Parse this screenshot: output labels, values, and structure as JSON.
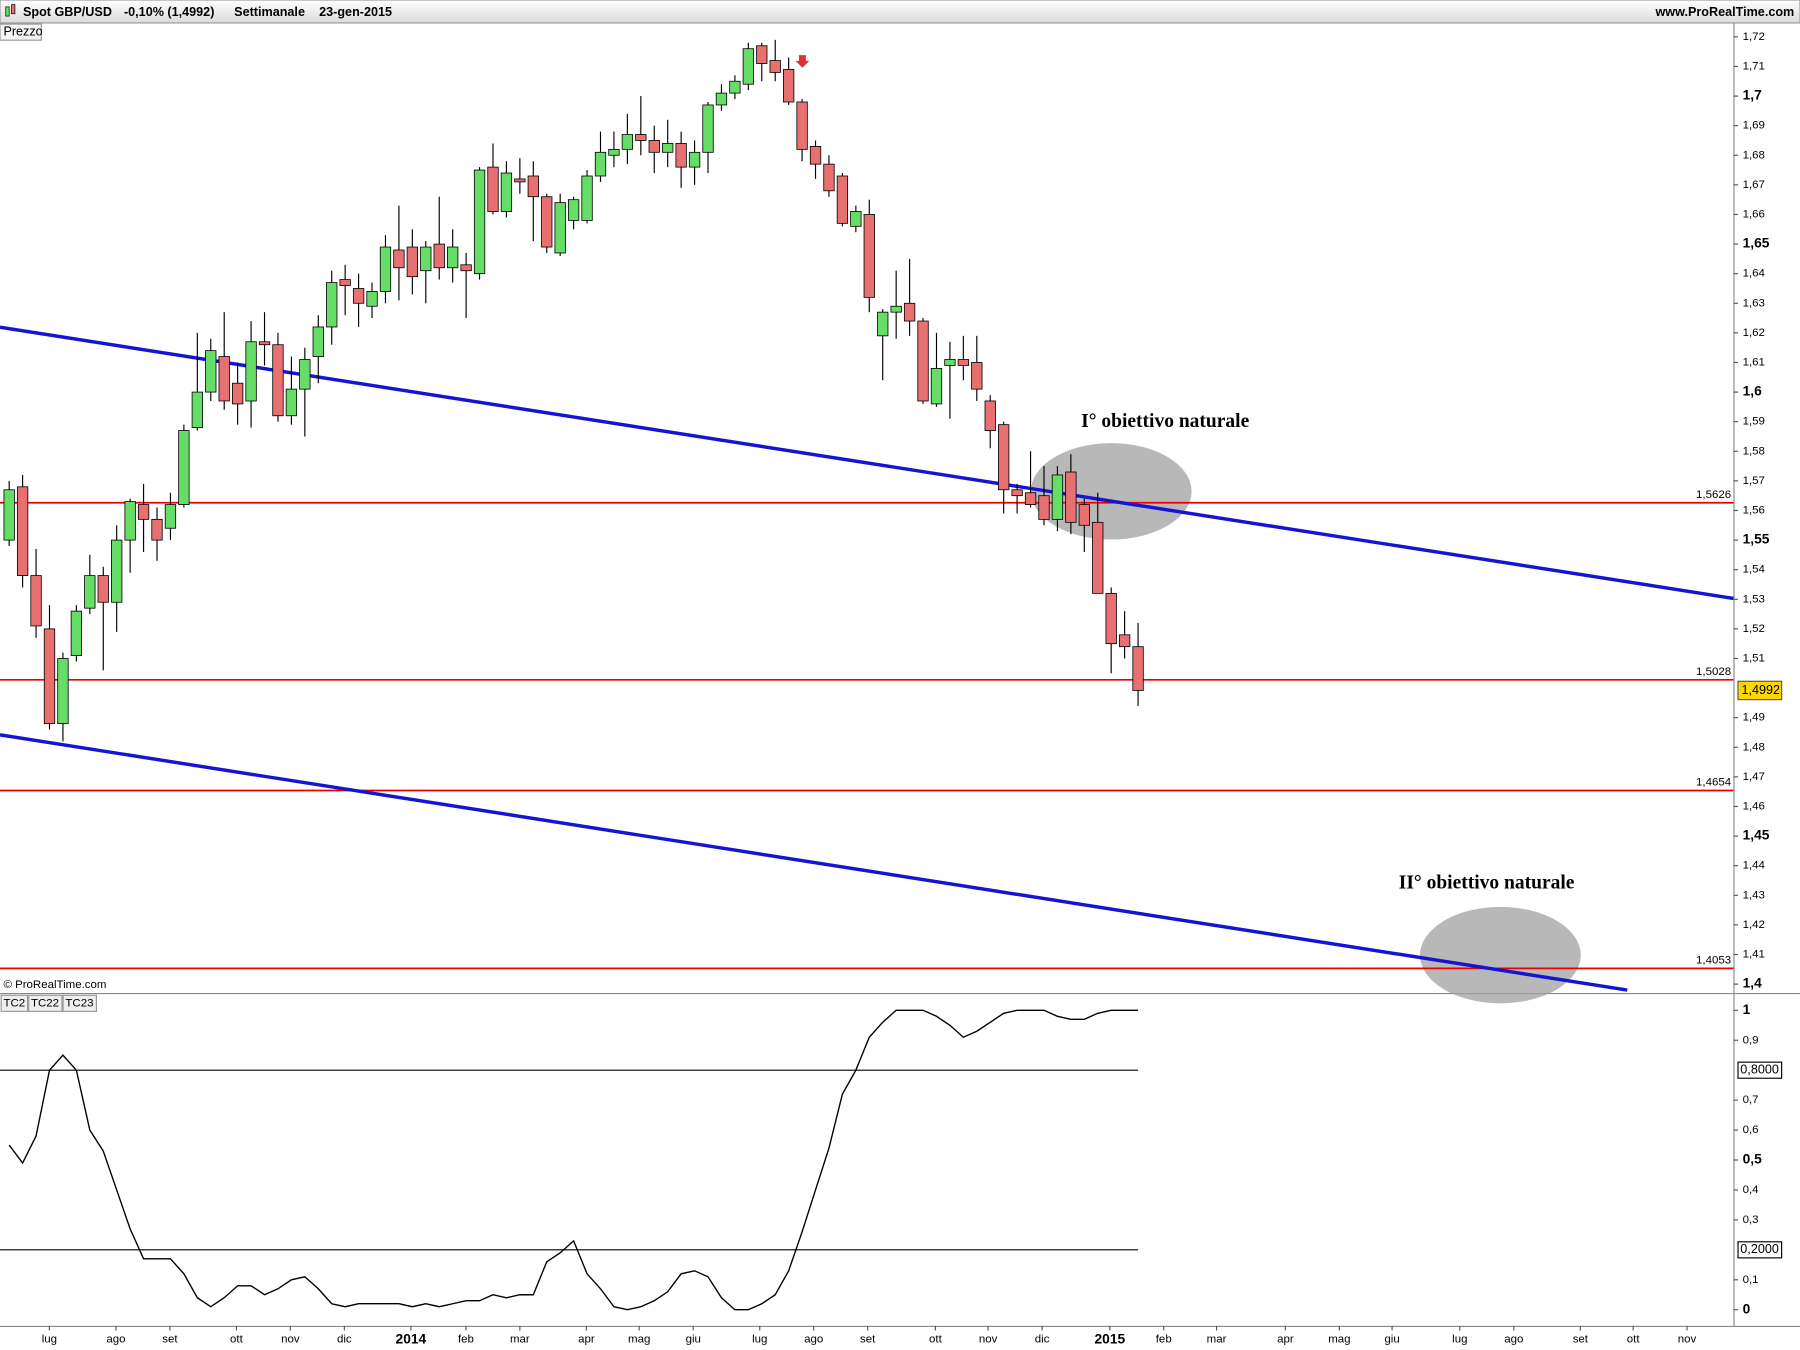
{
  "header": {
    "symbol": "Spot GBP/USD",
    "change": "-0,10% (1,4992)",
    "period": "Settimanale",
    "date": "23-gen-2015",
    "site": "www.ProRealTime.com"
  },
  "chart_data": [
    {
      "type": "candlestick",
      "panel_label": "Prezzo",
      "copyright": "© ProRealTime.com",
      "up_color": "#66dd66",
      "down_color": "#e87070",
      "open": [
        1.55,
        1.568,
        1.538,
        1.52,
        1.488,
        1.511,
        1.527,
        1.538,
        1.529,
        1.55,
        1.562,
        1.557,
        1.554,
        1.562,
        1.588,
        1.6,
        1.612,
        1.603,
        1.597,
        1.617,
        1.616,
        1.592,
        1.601,
        1.612,
        1.622,
        1.638,
        1.635,
        1.629,
        1.634,
        1.648,
        1.649,
        1.641,
        1.65,
        1.642,
        1.643,
        1.64,
        1.676,
        1.661,
        1.672,
        1.673,
        1.666,
        1.647,
        1.658,
        1.658,
        1.673,
        1.68,
        1.682,
        1.687,
        1.685,
        1.681,
        1.684,
        1.676,
        1.681,
        1.697,
        1.701,
        1.704,
        1.717,
        1.712,
        1.709,
        1.698,
        1.683,
        1.677,
        1.673,
        1.656,
        1.66,
        1.619,
        1.627,
        1.63,
        1.624,
        1.596,
        1.609,
        1.611,
        1.61,
        1.597,
        1.589,
        1.567,
        1.566,
        1.565,
        1.557,
        1.573,
        1.562,
        1.556,
        1.532,
        1.518,
        1.514
      ],
      "high": [
        1.57,
        1.572,
        1.547,
        1.528,
        1.512,
        1.528,
        1.545,
        1.541,
        1.555,
        1.564,
        1.569,
        1.561,
        1.566,
        1.589,
        1.62,
        1.618,
        1.627,
        1.61,
        1.624,
        1.627,
        1.62,
        1.612,
        1.615,
        1.626,
        1.641,
        1.643,
        1.64,
        1.637,
        1.653,
        1.663,
        1.655,
        1.651,
        1.666,
        1.655,
        1.647,
        1.676,
        1.684,
        1.678,
        1.679,
        1.678,
        1.667,
        1.667,
        1.666,
        1.675,
        1.688,
        1.688,
        1.694,
        1.7,
        1.69,
        1.692,
        1.688,
        1.685,
        1.698,
        1.704,
        1.707,
        1.718,
        1.718,
        1.719,
        1.713,
        1.699,
        1.685,
        1.68,
        1.674,
        1.663,
        1.665,
        1.628,
        1.641,
        1.645,
        1.625,
        1.62,
        1.617,
        1.619,
        1.619,
        1.599,
        1.59,
        1.569,
        1.58,
        1.575,
        1.575,
        1.579,
        1.564,
        1.566,
        1.534,
        1.526,
        1.522
      ],
      "low": [
        1.548,
        1.534,
        1.517,
        1.486,
        1.482,
        1.509,
        1.525,
        1.506,
        1.519,
        1.539,
        1.546,
        1.543,
        1.55,
        1.561,
        1.587,
        1.597,
        1.594,
        1.589,
        1.588,
        1.609,
        1.59,
        1.589,
        1.585,
        1.603,
        1.616,
        1.626,
        1.622,
        1.625,
        1.63,
        1.631,
        1.633,
        1.63,
        1.638,
        1.637,
        1.625,
        1.638,
        1.66,
        1.659,
        1.667,
        1.651,
        1.647,
        1.646,
        1.655,
        1.657,
        1.671,
        1.676,
        1.677,
        1.68,
        1.674,
        1.676,
        1.669,
        1.67,
        1.674,
        1.695,
        1.699,
        1.702,
        1.705,
        1.705,
        1.697,
        1.678,
        1.672,
        1.666,
        1.656,
        1.654,
        1.627,
        1.604,
        1.618,
        1.619,
        1.596,
        1.595,
        1.591,
        1.604,
        1.597,
        1.581,
        1.559,
        1.559,
        1.561,
        1.555,
        1.553,
        1.552,
        1.546,
        1.532,
        1.505,
        1.51,
        1.494
      ],
      "close": [
        1.567,
        1.538,
        1.521,
        1.488,
        1.51,
        1.526,
        1.538,
        1.529,
        1.55,
        1.563,
        1.557,
        1.55,
        1.562,
        1.587,
        1.6,
        1.614,
        1.597,
        1.596,
        1.617,
        1.616,
        1.592,
        1.601,
        1.611,
        1.622,
        1.637,
        1.636,
        1.63,
        1.634,
        1.649,
        1.642,
        1.639,
        1.649,
        1.642,
        1.649,
        1.641,
        1.675,
        1.661,
        1.674,
        1.671,
        1.666,
        1.649,
        1.664,
        1.665,
        1.673,
        1.681,
        1.682,
        1.687,
        1.685,
        1.681,
        1.684,
        1.676,
        1.681,
        1.697,
        1.701,
        1.705,
        1.716,
        1.711,
        1.708,
        1.698,
        1.682,
        1.677,
        1.668,
        1.657,
        1.661,
        1.632,
        1.627,
        1.629,
        1.624,
        1.597,
        1.608,
        1.611,
        1.609,
        1.601,
        1.587,
        1.567,
        1.565,
        1.562,
        1.557,
        1.572,
        1.556,
        1.555,
        1.532,
        1.515,
        1.514,
        1.4992
      ],
      "xlim": [
        -0.683,
        128.3
      ],
      "ylim": [
        1.397,
        1.7247
      ],
      "yticks": [
        {
          "value": 1.72,
          "label": "1,72"
        },
        {
          "value": 1.71,
          "label": "1,71"
        },
        {
          "value": 1.7,
          "label": "1,7"
        },
        {
          "value": 1.69,
          "label": "1,69"
        },
        {
          "value": 1.68,
          "label": "1,68"
        },
        {
          "value": 1.67,
          "label": "1,67"
        },
        {
          "value": 1.66,
          "label": "1,66"
        },
        {
          "value": 1.65,
          "label": "1,65"
        },
        {
          "value": 1.64,
          "label": "1,64"
        },
        {
          "value": 1.63,
          "label": "1,63"
        },
        {
          "value": 1.62,
          "label": "1,62"
        },
        {
          "value": 1.61,
          "label": "1,61"
        },
        {
          "value": 1.6,
          "label": "1,6"
        },
        {
          "value": 1.59,
          "label": "1,59"
        },
        {
          "value": 1.58,
          "label": "1,58"
        },
        {
          "value": 1.57,
          "label": "1,57"
        },
        {
          "value": 1.56,
          "label": "1,56"
        },
        {
          "value": 1.55,
          "label": "1,55"
        },
        {
          "value": 1.54,
          "label": "1,54"
        },
        {
          "value": 1.53,
          "label": "1,53"
        },
        {
          "value": 1.52,
          "label": "1,52"
        },
        {
          "value": 1.51,
          "label": "1,51"
        },
        {
          "value": 1.49,
          "label": "1,49"
        },
        {
          "value": 1.48,
          "label": "1,48"
        },
        {
          "value": 1.47,
          "label": "1,47"
        },
        {
          "value": 1.46,
          "label": "1,46"
        },
        {
          "value": 1.45,
          "label": "1,45"
        },
        {
          "value": 1.44,
          "label": "1,44"
        },
        {
          "value": 1.43,
          "label": "1,43"
        },
        {
          "value": 1.42,
          "label": "1,42"
        },
        {
          "value": 1.41,
          "label": "1,41"
        },
        {
          "value": 1.4,
          "label": "1,4"
        }
      ],
      "levels": [
        {
          "value": 1.5626,
          "label": "1,5626"
        },
        {
          "value": 1.5028,
          "label": "1,5028"
        },
        {
          "value": 1.4654,
          "label": "1,4654"
        },
        {
          "value": 1.4053,
          "label": "1,4053"
        }
      ],
      "level_color": "#ee0000",
      "last": {
        "value": 1.4992,
        "label": "1,4992"
      },
      "trendlines": [
        {
          "x": [
            -0.683,
            128.3
          ],
          "y": [
            1.6219,
            1.5303
          ],
          "color": "#1414d2"
        },
        {
          "x": [
            -0.683,
            120.4
          ],
          "y": [
            1.4842,
            1.398
          ],
          "color": "#1414d2"
        }
      ],
      "annotations": [
        "I° obiettivo naturale",
        "II° obiettivo naturale"
      ]
    },
    {
      "type": "line",
      "indicators": [
        "TC2",
        "TC22",
        "TC23"
      ],
      "color": "#000000",
      "values": [
        0.55,
        0.49,
        0.58,
        0.8,
        0.85,
        0.8,
        0.6,
        0.53,
        0.4,
        0.27,
        0.17,
        0.17,
        0.17,
        0.12,
        0.04,
        0.01,
        0.04,
        0.08,
        0.08,
        0.05,
        0.07,
        0.1,
        0.11,
        0.07,
        0.02,
        0.01,
        0.02,
        0.02,
        0.02,
        0.02,
        0.01,
        0.02,
        0.01,
        0.02,
        0.03,
        0.03,
        0.05,
        0.04,
        0.05,
        0.05,
        0.16,
        0.19,
        0.23,
        0.12,
        0.07,
        0.01,
        0.0,
        0.01,
        0.03,
        0.06,
        0.12,
        0.13,
        0.11,
        0.04,
        0.0,
        0.0,
        0.02,
        0.05,
        0.13,
        0.26,
        0.4,
        0.54,
        0.72,
        0.8,
        0.91,
        0.96,
        1.0,
        1.0,
        1.0,
        0.98,
        0.95,
        0.91,
        0.93,
        0.96,
        0.99,
        1.0,
        1.0,
        1.0,
        0.98,
        0.97,
        0.97,
        0.99,
        1.0,
        1.0,
        1.0
      ],
      "xlim": [
        -0.683,
        128.3
      ],
      "ylim": [
        -0.054,
        1.054
      ],
      "yticks": [
        1,
        {
          "value": 0.9,
          "label": "0,9"
        },
        {
          "value": 0.7,
          "label": "0,7"
        },
        {
          "value": 0.6,
          "label": "0,6"
        },
        {
          "value": 0.5,
          "label": "0,5"
        },
        {
          "value": 0.4,
          "label": "0,4"
        },
        {
          "value": 0.3,
          "label": "0,3"
        },
        {
          "value": 0.1,
          "label": "0,1"
        },
        0
      ],
      "levels": [
        {
          "value": 0.8,
          "label": "0,8000"
        },
        {
          "value": 0.2,
          "label": "0,2000"
        }
      ],
      "xticks": [
        {
          "value": 2.99,
          "label": "lug"
        },
        {
          "value": 7.94,
          "label": "ago"
        },
        {
          "value": 11.96,
          "label": "set"
        },
        {
          "value": 16.91,
          "label": "ott"
        },
        {
          "value": 20.92,
          "label": "nov"
        },
        {
          "value": 24.94,
          "label": "dic"
        },
        {
          "value": 29.89,
          "label": "2014"
        },
        {
          "value": 33.99,
          "label": "feb"
        },
        {
          "value": 38.0,
          "label": "mar"
        },
        {
          "value": 42.95,
          "label": "apr"
        },
        {
          "value": 46.88,
          "label": "mag"
        },
        {
          "value": 50.9,
          "label": "giu"
        },
        {
          "value": 55.85,
          "label": "lug"
        },
        {
          "value": 59.86,
          "label": "ago"
        },
        {
          "value": 63.88,
          "label": "set"
        },
        {
          "value": 68.92,
          "label": "ott"
        },
        {
          "value": 72.84,
          "label": "nov"
        },
        {
          "value": 76.86,
          "label": "dic"
        },
        {
          "value": 81.9,
          "label": "2015"
        },
        {
          "value": 85.91,
          "label": "feb"
        },
        {
          "value": 89.84,
          "label": "mar"
        },
        {
          "value": 94.96,
          "label": "apr"
        },
        {
          "value": 98.98,
          "label": "mag"
        },
        {
          "value": 102.9,
          "label": "giu"
        },
        {
          "value": 107.94,
          "label": "lug"
        },
        {
          "value": 111.96,
          "label": "ago"
        },
        {
          "value": 116.91,
          "label": "set"
        },
        {
          "value": 120.84,
          "label": "ott"
        },
        {
          "value": 124.85,
          "label": "nov"
        }
      ]
    }
  ]
}
